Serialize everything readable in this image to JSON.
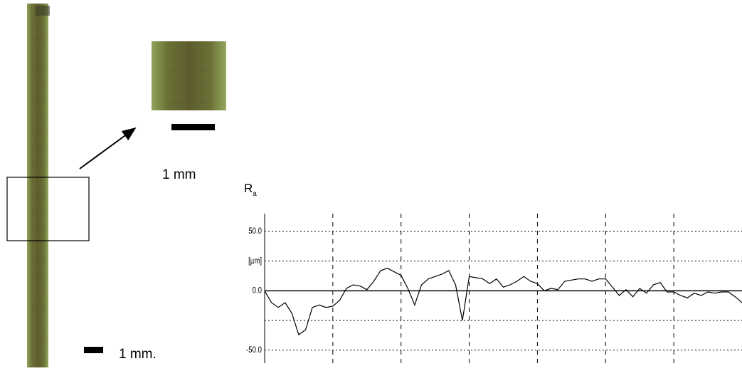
{
  "figure": {
    "inset_scale": "1 mm",
    "main_scale": "1 mm."
  },
  "chart_data": {
    "type": "line",
    "ylabel": "R",
    "ylabel_sub": "a",
    "x": [
      0,
      0.1,
      0.2,
      0.3,
      0.4,
      0.5,
      0.6,
      0.7,
      0.8,
      0.9,
      1,
      1.1,
      1.2,
      1.3,
      1.4,
      1.5,
      1.6,
      1.7,
      1.8,
      1.9,
      2,
      2.1,
      2.2,
      2.3,
      2.4,
      2.5,
      2.6,
      2.7,
      2.8,
      2.9,
      3,
      3.1,
      3.2,
      3.3,
      3.4,
      3.5,
      3.6,
      3.7,
      3.8,
      3.9,
      4,
      4.1,
      4.2,
      4.3,
      4.4,
      4.5,
      4.6,
      4.7,
      4.8,
      4.9,
      5,
      5.1,
      5.2,
      5.3,
      5.4,
      5.5,
      5.6,
      5.7,
      5.8,
      5.9,
      6,
      6.1,
      6.2,
      6.3,
      6.4,
      6.5,
      6.6,
      6.7,
      6.8,
      6.9,
      7
    ],
    "values": [
      0,
      -10,
      -14,
      -10,
      -19,
      -37,
      -33,
      -14,
      -12,
      -14,
      -13,
      -8,
      2,
      5,
      4,
      1,
      8,
      17,
      19,
      16,
      13,
      2,
      -12,
      5,
      10,
      12,
      14,
      17,
      5,
      -25,
      12,
      11,
      10,
      6,
      10,
      3,
      5,
      8,
      12,
      8,
      6,
      0,
      2,
      1,
      8,
      9,
      10,
      10,
      8,
      10,
      10,
      3,
      -4,
      1,
      -5,
      2,
      -2,
      5,
      7,
      -1,
      -1,
      -4,
      -6,
      -2,
      -4,
      -1,
      -2,
      -1,
      -1,
      -5,
      -10
    ],
    "color": "#000000",
    "xlim": [
      0,
      7
    ],
    "xticks": [
      1,
      2,
      3,
      4,
      5,
      6
    ],
    "ylim": [
      -61,
      65
    ],
    "yticks": [
      {
        "value": 50,
        "label": "50.0"
      },
      {
        "value": 25,
        "label": "[µm]"
      },
      {
        "value": 0,
        "label": "0.0"
      },
      {
        "value": -25,
        "label": null
      },
      {
        "value": -50,
        "label": "-50.0"
      }
    ],
    "grid": true
  }
}
